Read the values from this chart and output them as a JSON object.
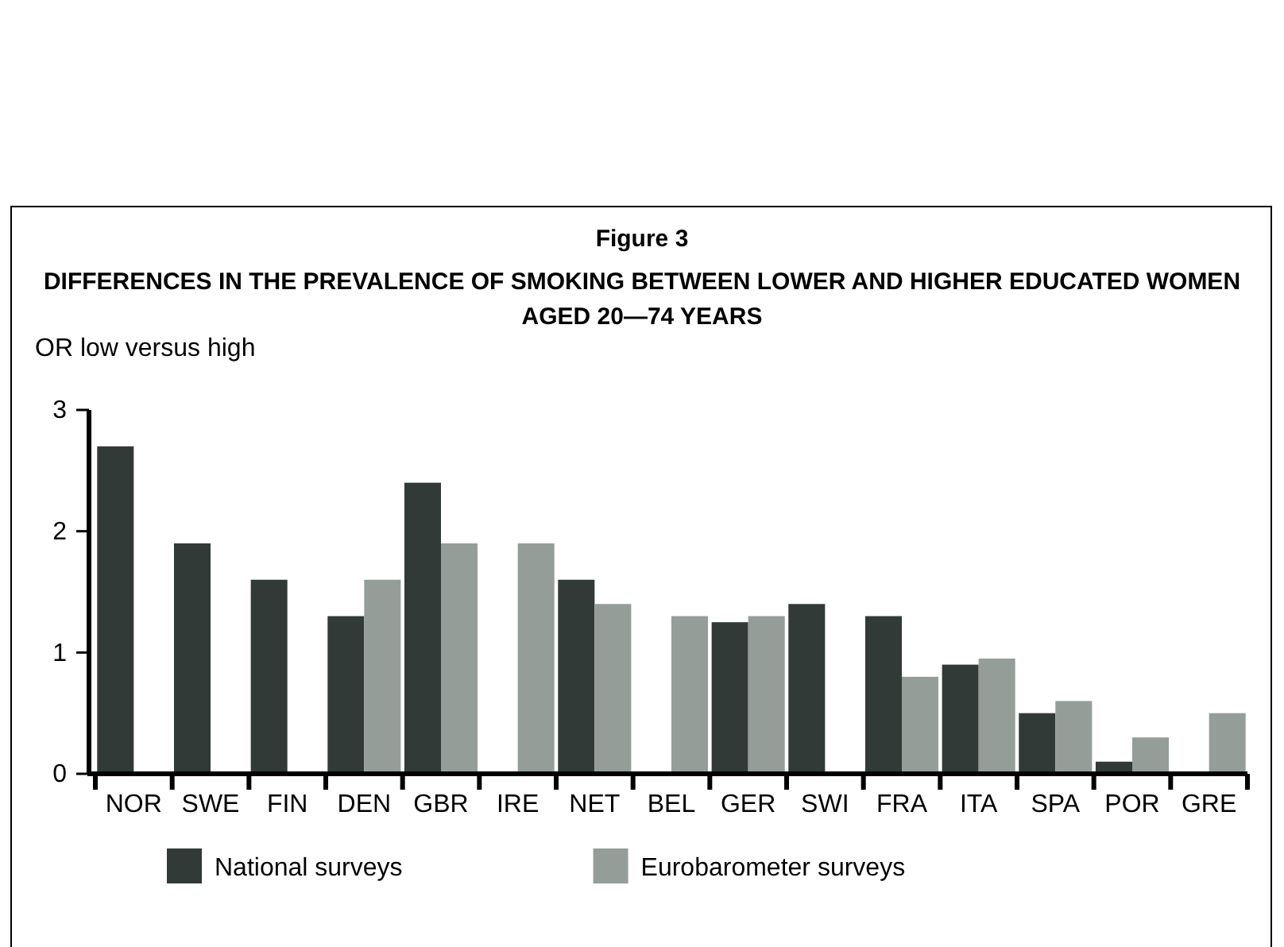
{
  "chart_data": {
    "type": "bar",
    "title": "Figure 3",
    "subtitle": "DIFFERENCES IN THE PREVALENCE OF SMOKING BETWEEN LOWER AND HIGHER EDUCATED WOMEN AGED 20—74 YEARS",
    "ylabel": "OR low versus high",
    "categories": [
      "NOR",
      "SWE",
      "FIN",
      "DEN",
      "GBR",
      "IRE",
      "NET",
      "BEL",
      "GER",
      "SWI",
      "FRA",
      "ITA",
      "SPA",
      "POR",
      "GRE"
    ],
    "series": [
      {
        "name": "National surveys",
        "color": "#313a36",
        "values": [
          2.7,
          1.9,
          1.6,
          1.3,
          2.4,
          null,
          1.6,
          null,
          1.25,
          1.4,
          1.3,
          0.9,
          0.5,
          0.1,
          null
        ]
      },
      {
        "name": "Eurobarometer surveys",
        "color": "#959d99",
        "values": [
          null,
          null,
          null,
          1.6,
          1.9,
          1.9,
          1.4,
          1.3,
          1.3,
          null,
          0.8,
          0.95,
          0.6,
          0.3,
          0.5
        ]
      }
    ],
    "ylim": [
      0,
      3
    ],
    "yticks": [
      0,
      1,
      2,
      3
    ],
    "grid": false,
    "legend": "bottom"
  }
}
